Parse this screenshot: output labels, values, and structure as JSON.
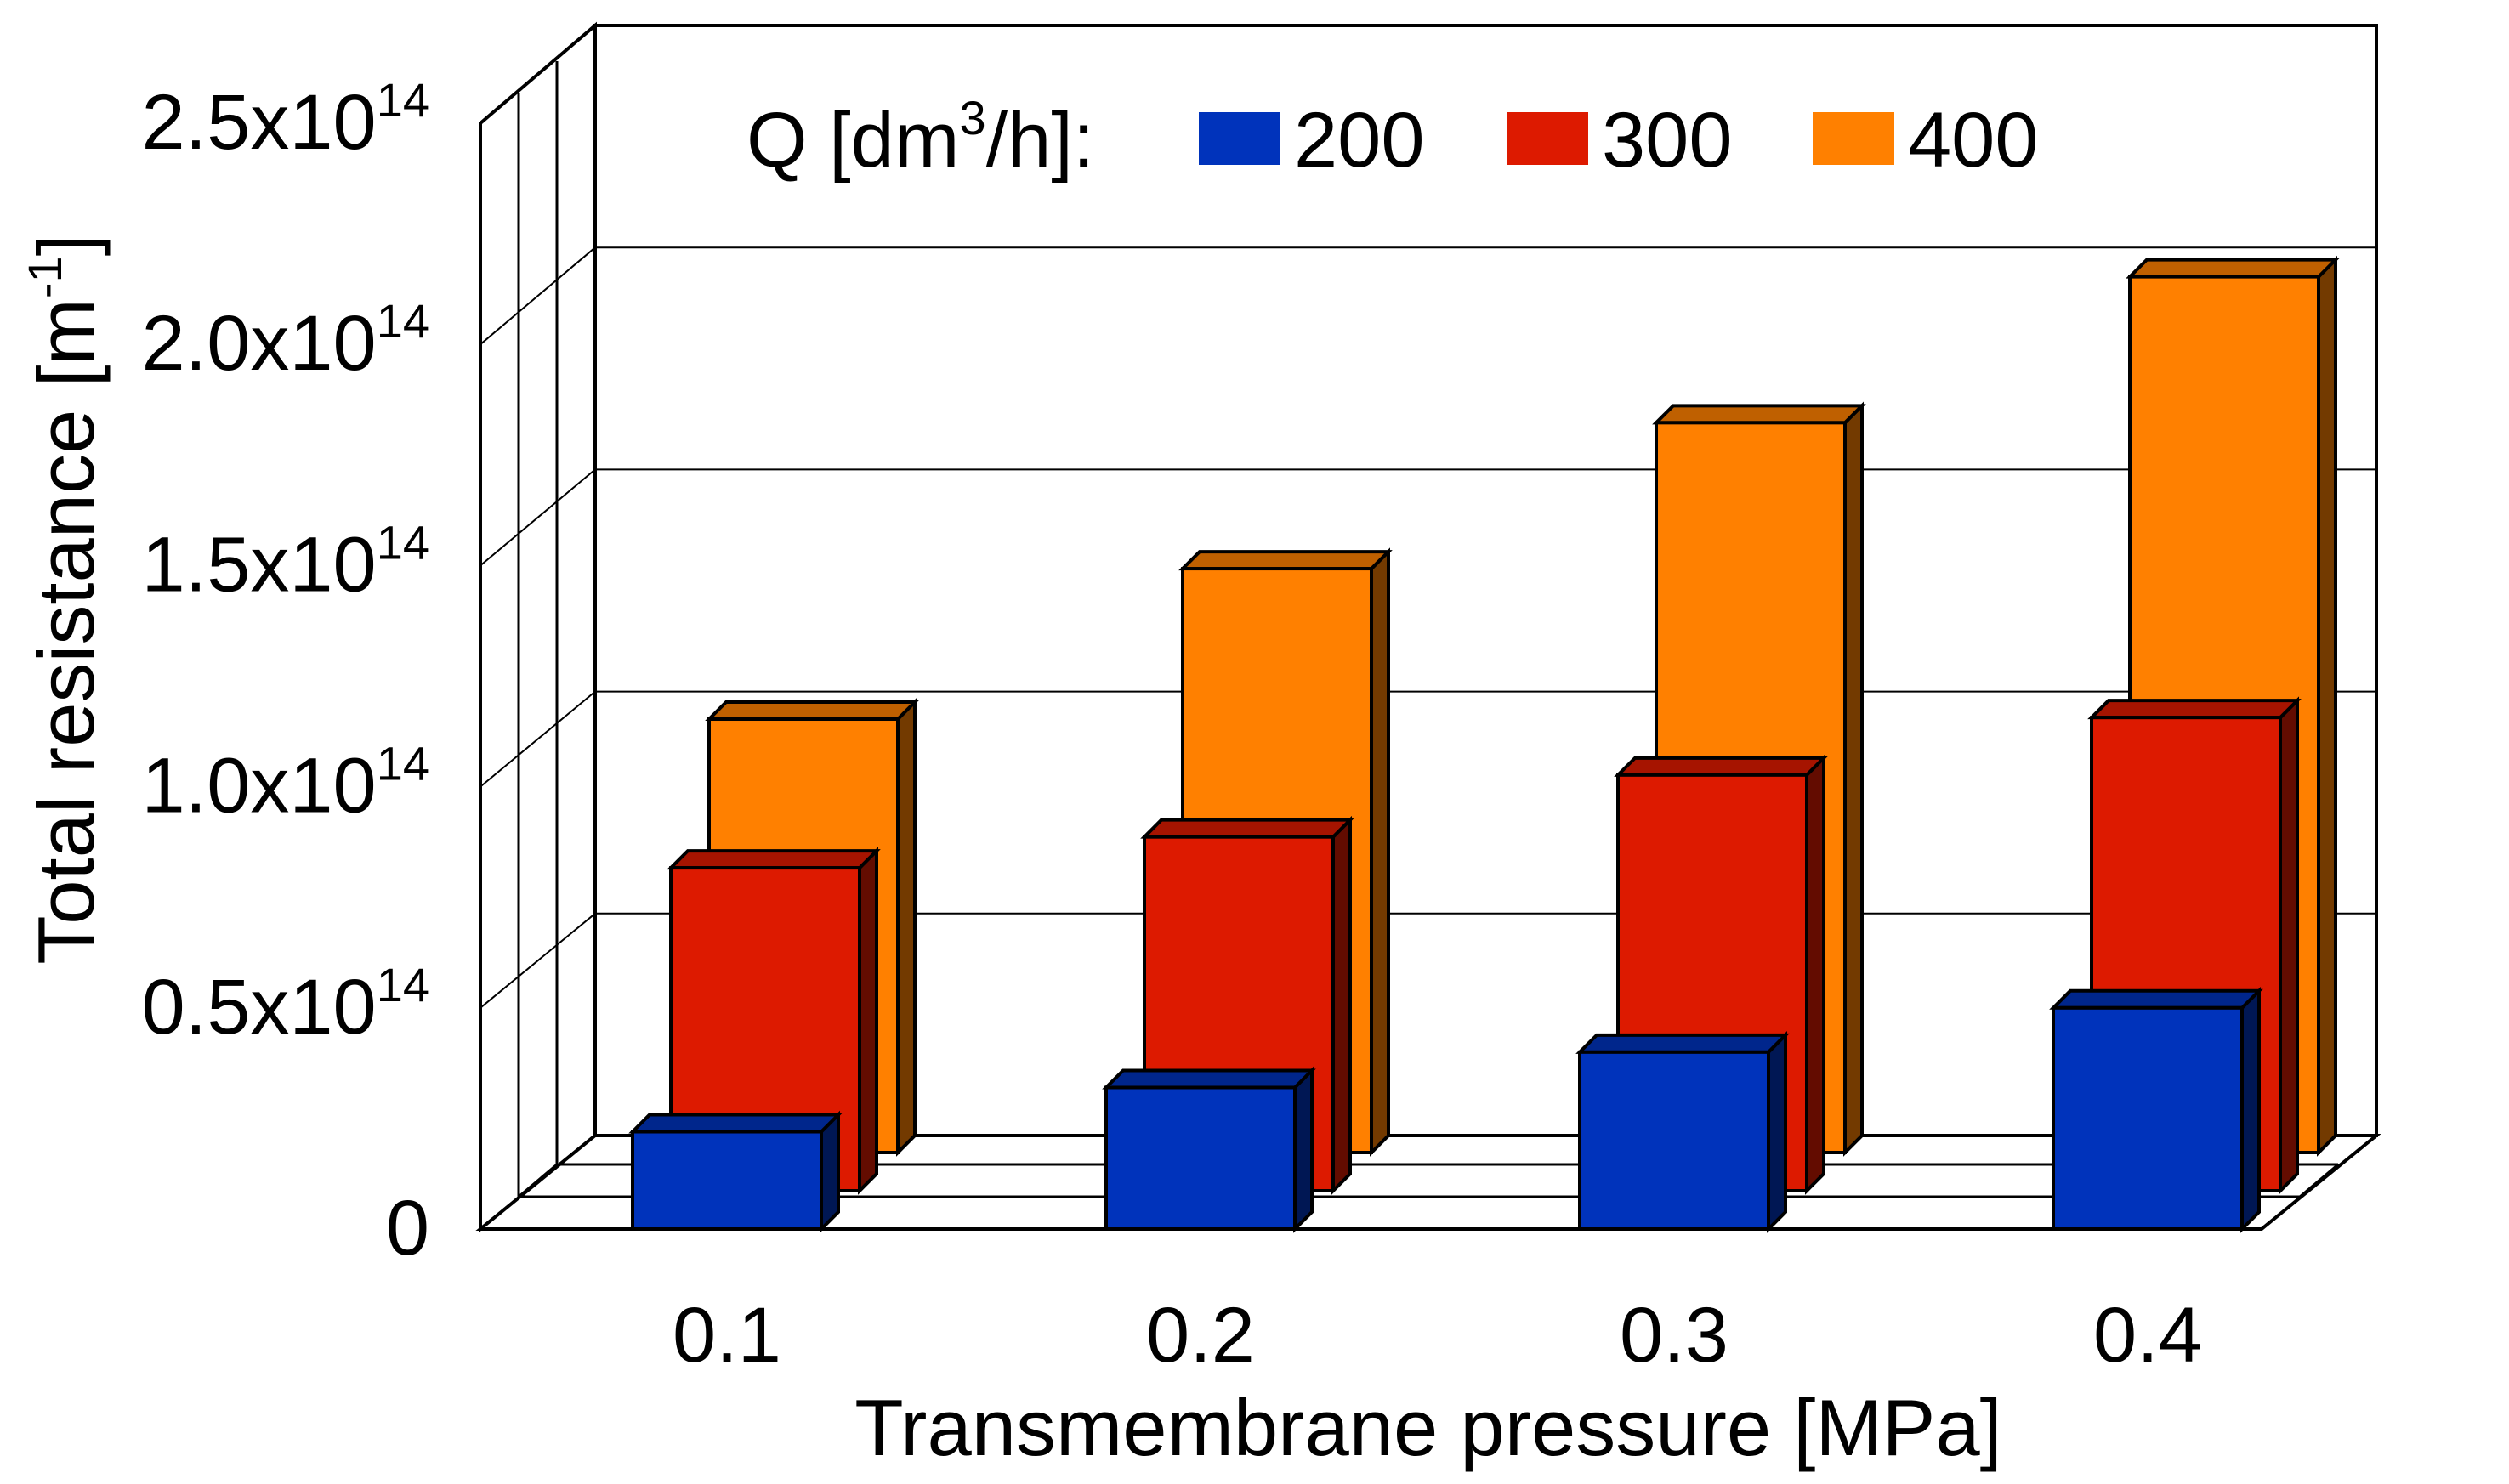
{
  "chart_data": {
    "type": "bar",
    "variant": "3d-grouped",
    "xlabel": "Transmembrane pressure [MPa]",
    "ylabel": {
      "text": "Total resistance [m",
      "sup": "-1",
      "close": "]"
    },
    "categories": [
      "0.1",
      "0.2",
      "0.3",
      "0.4"
    ],
    "ylim": [
      0,
      250000000000000.0
    ],
    "yticks": [
      {
        "value": 0,
        "text": "0",
        "sup": ""
      },
      {
        "value": 50000000000000.0,
        "text": "0.5x10",
        "sup": "14"
      },
      {
        "value": 100000000000000.0,
        "text": "1.0x10",
        "sup": "14"
      },
      {
        "value": 150000000000000.0,
        "text": "1.5x10",
        "sup": "14"
      },
      {
        "value": 200000000000000.0,
        "text": "2.0x10",
        "sup": "14"
      },
      {
        "value": 250000000000000.0,
        "text": "2.5x10",
        "sup": "14"
      }
    ],
    "grid": true,
    "legend": {
      "title": {
        "text": "Q [dm",
        "sup": "3",
        "close": "/h]:"
      },
      "placement": "top"
    },
    "series": [
      {
        "name": "200",
        "color": "#0033bb",
        "values": [
          22000000000000.0,
          32000000000000.0,
          40000000000000.0,
          50000000000000.0
        ]
      },
      {
        "name": "300",
        "color": "#dd1a00",
        "values": [
          73000000000000.0,
          80000000000000.0,
          94000000000000.0,
          107000000000000.0
        ]
      },
      {
        "name": "400",
        "color": "#ff8000",
        "values": [
          98000000000000.0,
          132000000000000.0,
          165000000000000.0,
          198000000000000.0
        ]
      }
    ]
  }
}
